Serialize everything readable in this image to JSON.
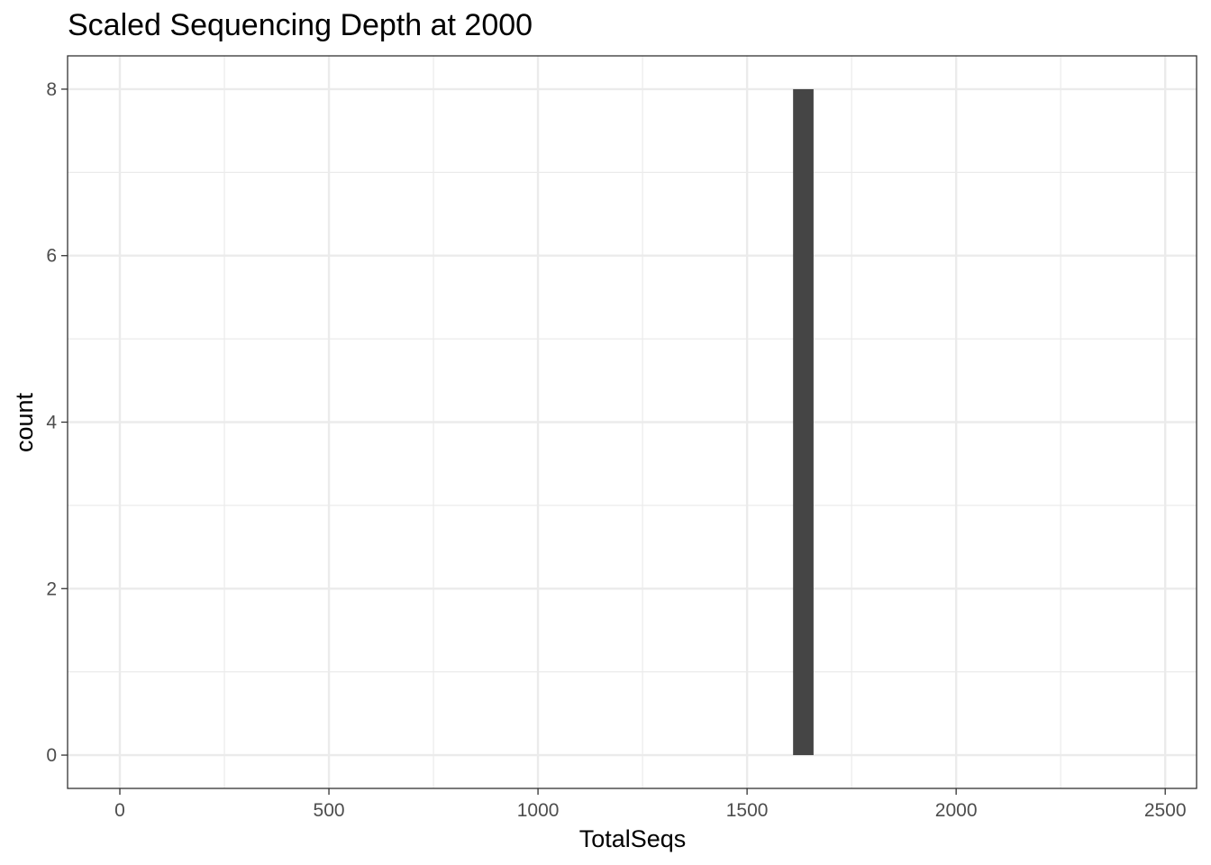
{
  "chart_data": {
    "type": "bar",
    "title": "Scaled Sequencing Depth at 2000",
    "xlabel": "TotalSeqs",
    "ylabel": "count",
    "xlim": [
      -125,
      2575
    ],
    "ylim": [
      -0.4,
      8.4
    ],
    "x_ticks": [
      0,
      500,
      1000,
      1500,
      2000,
      2500
    ],
    "x_tick_labels": [
      "0",
      "500",
      "1000",
      "1500",
      "2000",
      "2500"
    ],
    "y_ticks": [
      0,
      2,
      4,
      6,
      8
    ],
    "y_tick_labels": [
      "0",
      "2",
      "4",
      "6",
      "8"
    ],
    "bars": [
      {
        "x_start": 1610,
        "x_end": 1659,
        "count": 8
      }
    ],
    "bar_color": "#454545",
    "grid": true,
    "legend": "none"
  }
}
